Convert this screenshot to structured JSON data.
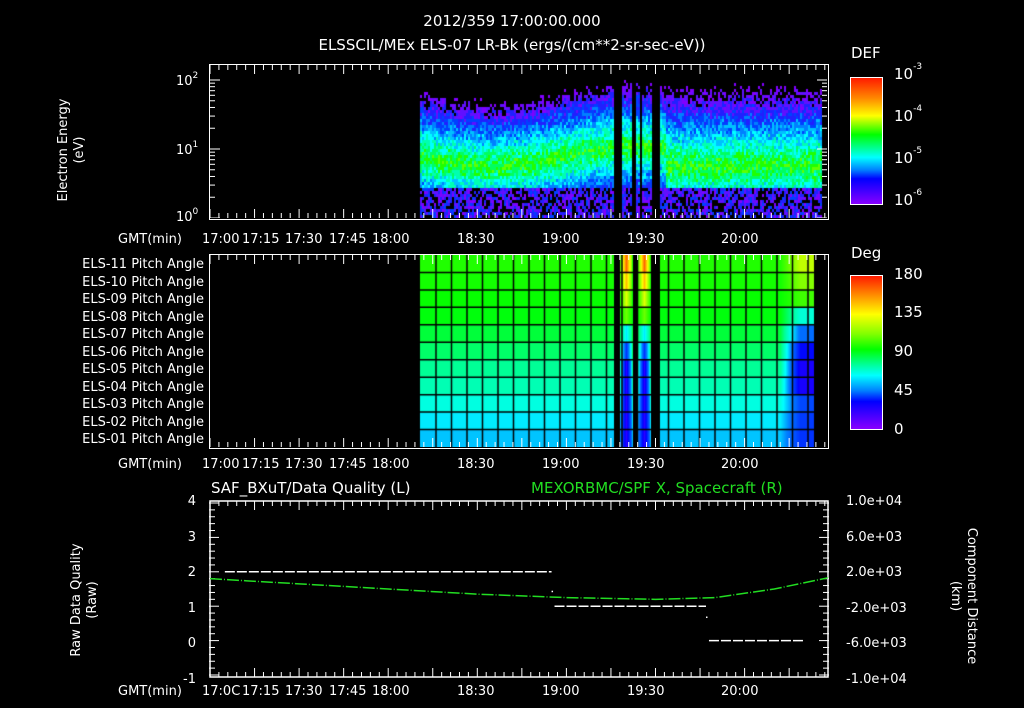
{
  "header": {
    "datetime": "2012/359 17:00:00.000",
    "subtitle": "ELSSCIL/MEx ELS-07 LR-Bk  (ergs/(cm**2-sr-sec-eV))"
  },
  "time_axis": {
    "label": "GMT(min)",
    "ticks": [
      "17:00",
      "17:15",
      "17:30",
      "17:45",
      "18:00",
      "18:30",
      "19:00",
      "19:30",
      "20:00"
    ],
    "bottom_ticks": [
      "17:0C",
      "17:15",
      "17:30",
      "17:45",
      "18:00",
      "18:30",
      "19:00",
      "19:30",
      "20:00"
    ]
  },
  "panel1": {
    "ylabel": "Electron Energy",
    "yunits": "(eV)",
    "yticks": [
      {
        "base": "10",
        "exp": "2"
      },
      {
        "base": "10",
        "exp": "1"
      },
      {
        "base": "10",
        "exp": "0"
      }
    ],
    "colorbar": {
      "title": "DEF",
      "ticks": [
        {
          "base": "10",
          "exp": "-3"
        },
        {
          "base": "10",
          "exp": "-4"
        },
        {
          "base": "10",
          "exp": "-5"
        },
        {
          "base": "10",
          "exp": "-6"
        }
      ]
    }
  },
  "panel2": {
    "rows": [
      "ELS-11 Pitch Angle",
      "ELS-10 Pitch Angle",
      "ELS-09 Pitch Angle",
      "ELS-08 Pitch Angle",
      "ELS-07 Pitch Angle",
      "ELS-06 Pitch Angle",
      "ELS-05 Pitch Angle",
      "ELS-04 Pitch Angle",
      "ELS-03 Pitch Angle",
      "ELS-02 Pitch Angle",
      "ELS-01 Pitch Angle"
    ],
    "colorbar": {
      "title": "Deg",
      "ticks": [
        "180",
        "135",
        "90",
        "45",
        "0"
      ]
    }
  },
  "panel3": {
    "left_title": "SAF_BXuT/Data Quality (L)",
    "right_title": "MEXORBMC/SPF X, Spacecraft (R)",
    "ylabel_left": "Raw Data Quality",
    "yunits_left": "(Raw)",
    "yticks_left": [
      "4",
      "3",
      "2",
      "1",
      "0",
      "-1"
    ],
    "ylabel_right": "Component Distance",
    "yunits_right": "(km)",
    "yticks_right": [
      "1.0e+04",
      "6.0e+03",
      "2.0e+03",
      "-2.0e+03",
      "-6.0e+03",
      "-1.0e+04"
    ],
    "colors": {
      "left_series": "#ffffff",
      "right_series": "#22dd22"
    }
  },
  "chart_data": [
    {
      "type": "heatmap",
      "title": "ELSSCIL/MEx ELS-07 LR-Bk (ergs/(cm**2-sr-sec-eV))",
      "xlabel": "GMT(min)",
      "ylabel": "Electron Energy (eV)",
      "x_range": [
        "17:00",
        "20:28"
      ],
      "data_start": "18:10",
      "y_scale": "log",
      "ylim": [
        1,
        170
      ],
      "colorbar": {
        "label": "DEF",
        "scale": "log",
        "range": [
          1e-06,
          0.001
        ]
      },
      "data_gaps": [
        [
          "19:17",
          "19:19"
        ],
        [
          "19:24",
          "19:25"
        ],
        [
          "19:29",
          "19:31"
        ],
        [
          "20:26",
          "20:27"
        ]
      ],
      "features": "Peak flux (~1e-4) concentrated between 5-30 eV; low counts below 3 eV; flux band broadens after ~19:50"
    },
    {
      "type": "heatmap",
      "title": "ELS Pitch Angles",
      "xlabel": "GMT(min)",
      "categories": [
        "ELS-11",
        "ELS-10",
        "ELS-09",
        "ELS-08",
        "ELS-07",
        "ELS-06",
        "ELS-05",
        "ELS-04",
        "ELS-03",
        "ELS-02",
        "ELS-01"
      ],
      "colorbar": {
        "label": "Deg",
        "range": [
          0,
          180
        ]
      },
      "data_start": "18:10",
      "data_end": "20:23",
      "typical_values_deg": [
        100,
        98,
        96,
        94,
        90,
        86,
        82,
        78,
        72,
        66,
        62
      ],
      "anomaly_periods": [
        {
          "time": "19:20-19:27",
          "note": "ELS-11 ~165 deg, ELS-01..04 ~20 deg"
        },
        {
          "time": "20:15-20:23",
          "note": "ELS-11 ~120 deg, ELS-05..07 ~25 deg"
        }
      ]
    },
    {
      "type": "line",
      "title": "SAF_BXuT/Data Quality (L) / MEXORBMC/SPF X, Spacecraft (R)",
      "xlabel": "GMT(min)",
      "ylim_left": [
        -1,
        4
      ],
      "ylim_right": [
        -10000,
        10000
      ],
      "series": [
        {
          "name": "Data Quality (L)",
          "axis": "left",
          "color": "#ffffff",
          "points": [
            [
              "17:05",
              2
            ],
            [
              "18:55",
              2
            ],
            [
              "18:56",
              1
            ],
            [
              "19:47",
              1
            ],
            [
              "19:48",
              0
            ],
            [
              "20:20",
              0
            ]
          ]
        },
        {
          "name": "SPF X (R)",
          "axis": "right",
          "color": "#22dd22",
          "points": [
            [
              "17:00",
              1200
            ],
            [
              "17:30",
              600
            ],
            [
              "18:00",
              0
            ],
            [
              "18:30",
              -600
            ],
            [
              "19:00",
              -1000
            ],
            [
              "19:30",
              -1200
            ],
            [
              "19:50",
              -1000
            ],
            [
              "20:10",
              0
            ],
            [
              "20:28",
              1300
            ]
          ]
        }
      ]
    }
  ]
}
